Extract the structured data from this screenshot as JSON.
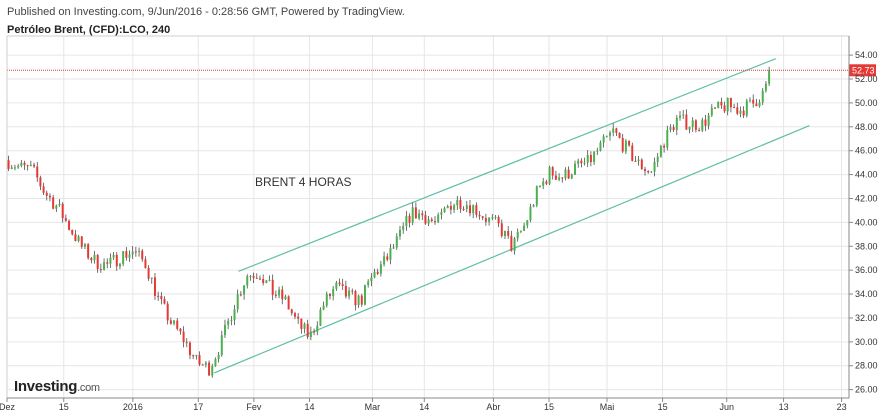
{
  "header": {
    "published": "Published on Investing.com, 9/Jun/2016 - 0:28:56 GMT, Powered by TradingView.",
    "symbol": "Petróleo Brent, (CFD):LCO, 240"
  },
  "logo": {
    "brand": "Investing",
    "suffix": ".com"
  },
  "colors": {
    "up": "#4caf50",
    "down": "#e53935",
    "wick": "#333333",
    "channel": "#5fbfa5",
    "price_line": "#e53935",
    "price_tag_bg": "#e53935",
    "grid": "#e6e6e6",
    "axis": "#888888"
  },
  "chart_data": {
    "type": "line",
    "title": "",
    "annotation": "BRENT 4 HORAS",
    "ylabel": "",
    "xlabel": "",
    "ylim": [
      25.3,
      55.6
    ],
    "y_ticks": [
      "26.00",
      "28.00",
      "30.00",
      "32.00",
      "34.00",
      "36.00",
      "38.00",
      "40.00",
      "42.00",
      "44.00",
      "46.00",
      "48.00",
      "50.00",
      "52.00",
      "54.00"
    ],
    "x_ticks": [
      {
        "label": "Dez",
        "pos": 0.0
      },
      {
        "label": "15",
        "pos": 0.0674
      },
      {
        "label": "2016",
        "pos": 0.1495
      },
      {
        "label": "17",
        "pos": 0.2272
      },
      {
        "label": "Fev",
        "pos": 0.2932
      },
      {
        "label": "14",
        "pos": 0.3592
      },
      {
        "label": "Mar",
        "pos": 0.434
      },
      {
        "label": "14",
        "pos": 0.4956
      },
      {
        "label": "Abr",
        "pos": 0.5777
      },
      {
        "label": "15",
        "pos": 0.6437
      },
      {
        "label": "Mai",
        "pos": 0.7126
      },
      {
        "label": "15",
        "pos": 0.7786
      },
      {
        "label": "Jun",
        "pos": 0.8548
      },
      {
        "label": "13",
        "pos": 0.9223
      },
      {
        "label": "23",
        "pos": 0.9912
      }
    ],
    "current_price": "52.73",
    "series": [
      {
        "values": [
          {
            "x": 0.0,
            "y": 45.2
          },
          {
            "x": 0.015,
            "y": 44.6
          },
          {
            "x": 0.03,
            "y": 44.4
          },
          {
            "x": 0.045,
            "y": 42.5
          },
          {
            "x": 0.06,
            "y": 41.3
          },
          {
            "x": 0.075,
            "y": 39.5
          },
          {
            "x": 0.09,
            "y": 37.8
          },
          {
            "x": 0.105,
            "y": 36.7
          },
          {
            "x": 0.12,
            "y": 36.4
          },
          {
            "x": 0.135,
            "y": 37.2
          },
          {
            "x": 0.15,
            "y": 37.6
          },
          {
            "x": 0.165,
            "y": 36.5
          },
          {
            "x": 0.18,
            "y": 33.5
          },
          {
            "x": 0.195,
            "y": 31.6
          },
          {
            "x": 0.21,
            "y": 30.2
          },
          {
            "x": 0.225,
            "y": 28.3
          },
          {
            "x": 0.24,
            "y": 27.8
          },
          {
            "x": 0.255,
            "y": 30.0
          },
          {
            "x": 0.27,
            "y": 33.2
          },
          {
            "x": 0.285,
            "y": 35.6
          },
          {
            "x": 0.3,
            "y": 35.8
          },
          {
            "x": 0.315,
            "y": 34.2
          },
          {
            "x": 0.33,
            "y": 33.5
          },
          {
            "x": 0.345,
            "y": 31.5
          },
          {
            "x": 0.36,
            "y": 30.4
          },
          {
            "x": 0.375,
            "y": 33.0
          },
          {
            "x": 0.39,
            "y": 34.6
          },
          {
            "x": 0.405,
            "y": 33.8
          },
          {
            "x": 0.42,
            "y": 33.4
          },
          {
            "x": 0.435,
            "y": 35.6
          },
          {
            "x": 0.45,
            "y": 36.8
          },
          {
            "x": 0.465,
            "y": 38.6
          },
          {
            "x": 0.48,
            "y": 40.8
          },
          {
            "x": 0.495,
            "y": 40.6
          },
          {
            "x": 0.51,
            "y": 39.8
          },
          {
            "x": 0.525,
            "y": 41.5
          },
          {
            "x": 0.54,
            "y": 41.8
          },
          {
            "x": 0.555,
            "y": 41.2
          },
          {
            "x": 0.57,
            "y": 40.3
          },
          {
            "x": 0.585,
            "y": 39.6
          },
          {
            "x": 0.6,
            "y": 37.9
          },
          {
            "x": 0.615,
            "y": 39.8
          },
          {
            "x": 0.63,
            "y": 42.6
          },
          {
            "x": 0.645,
            "y": 44.2
          },
          {
            "x": 0.66,
            "y": 43.8
          },
          {
            "x": 0.675,
            "y": 44.6
          },
          {
            "x": 0.69,
            "y": 45.0
          },
          {
            "x": 0.705,
            "y": 46.3
          },
          {
            "x": 0.72,
            "y": 47.6
          },
          {
            "x": 0.735,
            "y": 46.2
          },
          {
            "x": 0.75,
            "y": 44.9
          },
          {
            "x": 0.765,
            "y": 44.2
          },
          {
            "x": 0.78,
            "y": 46.8
          },
          {
            "x": 0.795,
            "y": 48.6
          },
          {
            "x": 0.81,
            "y": 48.3
          },
          {
            "x": 0.825,
            "y": 48.2
          },
          {
            "x": 0.84,
            "y": 49.3
          },
          {
            "x": 0.855,
            "y": 49.8
          },
          {
            "x": 0.87,
            "y": 49.4
          },
          {
            "x": 0.885,
            "y": 49.9
          },
          {
            "x": 0.9,
            "y": 51.0
          },
          {
            "x": 0.907,
            "y": 52.73
          }
        ]
      }
    ],
    "channel_upper": [
      {
        "x": 0.275,
        "y": 35.9
      },
      {
        "x": 0.913,
        "y": 53.7
      }
    ],
    "channel_lower": [
      {
        "x": 0.246,
        "y": 27.4
      },
      {
        "x": 0.953,
        "y": 48.1
      }
    ]
  }
}
